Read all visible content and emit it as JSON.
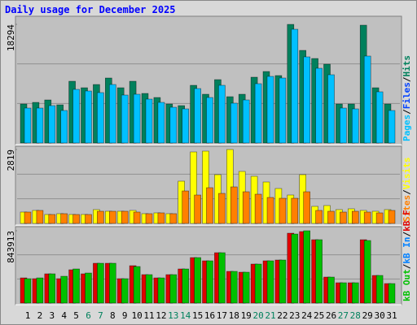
{
  "chart_data": {
    "type": "bar",
    "title": "Daily usage for December 2025",
    "categories": [
      "1",
      "2",
      "3",
      "4",
      "5",
      "6",
      "7",
      "8",
      "9",
      "10",
      "11",
      "12",
      "13",
      "14",
      "15",
      "16",
      "17",
      "18",
      "19",
      "20",
      "21",
      "22",
      "23",
      "24",
      "25",
      "26",
      "27",
      "28",
      "29",
      "30",
      "31"
    ],
    "category_colors": [
      "#000000",
      "#000000",
      "#000000",
      "#000000",
      "#000000",
      "#00805c",
      "#00805c",
      "#000000",
      "#000000",
      "#000000",
      "#000000",
      "#000000",
      "#00805c",
      "#00805c",
      "#000000",
      "#000000",
      "#000000",
      "#000000",
      "#000000",
      "#00805c",
      "#00805c",
      "#000000",
      "#000000",
      "#000000",
      "#000000",
      "#000000",
      "#00805c",
      "#00805c",
      "#000000",
      "#000000",
      "#000000"
    ],
    "legend_separator": "/",
    "panels": [
      {
        "ylim": [
          0,
          18294
        ],
        "yticks": [
          18294
        ],
        "series": [
          {
            "name": "Hits",
            "color": "#00805c",
            "values": [
              6015,
              6265,
              6640,
              5889,
              9523,
              8520,
              9021,
              10024,
              8520,
              9523,
              7643,
              7017,
              6015,
              5764,
              8896,
              7518,
              9773,
              7142,
              7518,
              10149,
              11026,
              10400,
              18294,
              14284,
              13031,
              12154,
              6015,
              6015,
              18169,
              8520,
              6015
            ]
          },
          {
            "name": "Files",
            "color": "#0040ff",
            "values": [
              null,
              null,
              null,
              null,
              null,
              null,
              null,
              null,
              null,
              null,
              null,
              null,
              null,
              null,
              null,
              null,
              null,
              null,
              null,
              null,
              null,
              null,
              null,
              null,
              null,
              null,
              null,
              null,
              null,
              null,
              null
            ]
          },
          {
            "name": "Pages",
            "color": "#00c0ff",
            "values": [
              5388,
              5388,
              5764,
              5012,
              8270,
              8019,
              7769,
              9021,
              7393,
              7518,
              6766,
              6265,
              5513,
              5263,
              8395,
              7017,
              8896,
              6140,
              6641,
              9147,
              10274,
              10024,
              17542,
              13282,
              11526,
              10525,
              5388,
              5263,
              13407,
              7894,
              5012
            ]
          }
        ]
      },
      {
        "ylim": [
          0,
          2819
        ],
        "yticks": [
          2819
        ],
        "series": [
          {
            "name": "Visits",
            "color": "#ffff00",
            "values": [
              434,
              496,
              341,
              372,
              341,
              341,
              527,
              465,
              465,
              496,
              372,
              403,
              372,
              1611,
              2726,
              2757,
              1859,
              2819,
              1983,
              1797,
              1580,
              1332,
              1084,
              1859,
              651,
              682,
              527,
              558,
              496,
              465,
              527
            ]
          },
          {
            "name": "Sites",
            "color": "#ff8000",
            "values": [
              434,
              496,
              341,
              372,
              341,
              341,
              465,
              465,
              465,
              434,
              372,
              403,
              372,
              1239,
              1084,
              1363,
              1146,
              1394,
              1208,
              1115,
              991,
              960,
              960,
              1208,
              496,
              465,
              434,
              465,
              434,
              403,
              496
            ]
          }
        ]
      },
      {
        "ylim": [
          0,
          843913
        ],
        "yticks": [
          843913
        ],
        "series": [
          {
            "name": "kB F",
            "color": "#e00000",
            "values": [
              293942,
              284460,
              341352,
              284460,
              388762,
              341352,
              464618,
              464618,
              284460,
              436172,
              331870,
              293942,
              331870,
              398244,
              530992,
              493064,
              587884,
              369798,
              360316,
              455136,
              493064,
              502546,
              815452,
              834416,
              739596,
              303424,
              237050,
              237050,
              739596,
              322388,
              227568
            ]
          },
          {
            "name": "kB In",
            "color": "#0080ff",
            "values": [
              null,
              null,
              null,
              null,
              null,
              null,
              null,
              null,
              null,
              null,
              null,
              null,
              null,
              null,
              null,
              null,
              null,
              null,
              null,
              null,
              null,
              null,
              null,
              null,
              null,
              null,
              null,
              null,
              null,
              null,
              null
            ]
          },
          {
            "name": "kB Out",
            "color": "#00c000",
            "values": [
              284460,
              293942,
              341352,
              312906,
              398244,
              350834,
              464618,
              464618,
              284460,
              426690,
              331870,
              293942,
              331870,
              398244,
              530992,
              493064,
              587884,
              369798,
              360316,
              455136,
              493064,
              502546,
              805970,
              843913,
              739596,
              303424,
              237050,
              237050,
              730114,
              322388,
              227568
            ]
          }
        ]
      }
    ]
  }
}
